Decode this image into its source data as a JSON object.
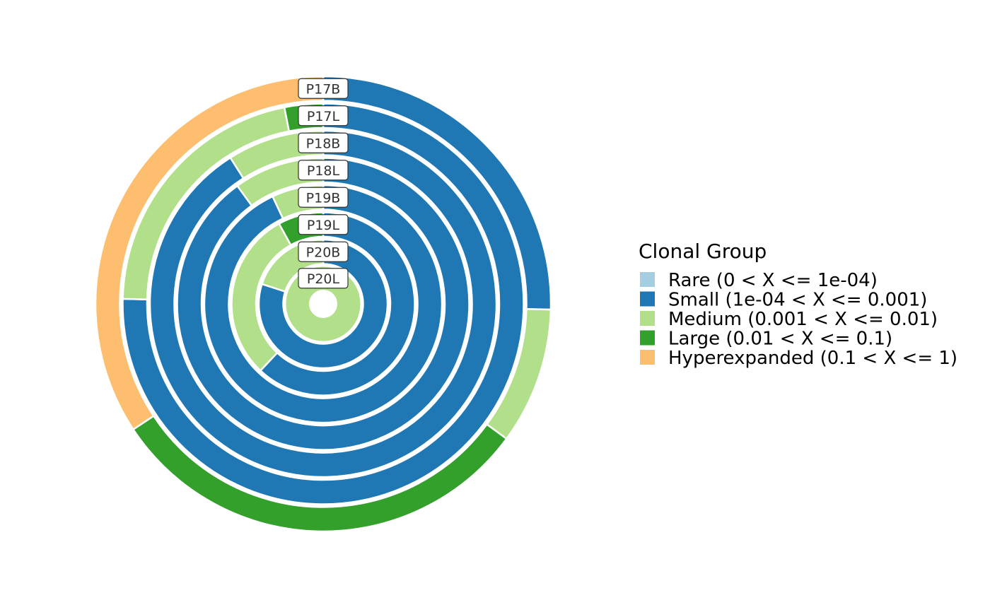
{
  "chart_data": {
    "type": "donut-rings",
    "legend": {
      "title": "Clonal Group",
      "position": "right",
      "entries": [
        {
          "label": "Rare (0 < X <= 1e-04)",
          "color": "#A6CEE3"
        },
        {
          "label": "Small (1e-04 < X <= 0.001)",
          "color": "#1F78B4"
        },
        {
          "label": "Medium (0.001 < X <= 0.01)",
          "color": "#B2DF8A"
        },
        {
          "label": "Large (0.01 < X <= 0.1)",
          "color": "#33A02C"
        },
        {
          "label": "Hyperexpanded (0.1 < X <= 1)",
          "color": "#FDBF6F"
        }
      ]
    },
    "rings": [
      {
        "sample": "P17B",
        "segments": [
          {
            "group": "Small (1e-04 < X <= 0.001)",
            "value": 0.254
          },
          {
            "group": "Medium (0.001 < X <= 0.01)",
            "value": 0.097
          },
          {
            "group": "Large (0.01 < X <= 0.1)",
            "value": 0.306
          },
          {
            "group": "Hyperexpanded (0.1 < X <= 1)",
            "value": 0.343
          }
        ]
      },
      {
        "sample": "P17L",
        "segments": [
          {
            "group": "Small (1e-04 < X <= 0.001)",
            "value": 0.754
          },
          {
            "group": "Medium (0.001 < X <= 0.01)",
            "value": 0.215
          },
          {
            "group": "Large (0.01 < X <= 0.1)",
            "value": 0.031
          }
        ]
      },
      {
        "sample": "P18B",
        "segments": [
          {
            "group": "Small (1e-04 < X <= 0.001)",
            "value": 0.91
          },
          {
            "group": "Medium (0.001 < X <= 0.01)",
            "value": 0.09
          }
        ]
      },
      {
        "sample": "P18L",
        "segments": [
          {
            "group": "Small (1e-04 < X <= 0.001)",
            "value": 0.9
          },
          {
            "group": "Medium (0.001 < X <= 0.01)",
            "value": 0.1
          }
        ]
      },
      {
        "sample": "P19B",
        "segments": [
          {
            "group": "Small (1e-04 < X <= 0.001)",
            "value": 0.93
          },
          {
            "group": "Medium (0.001 < X <= 0.01)",
            "value": 0.07
          }
        ]
      },
      {
        "sample": "P19L",
        "segments": [
          {
            "group": "Small (1e-04 < X <= 0.001)",
            "value": 0.62
          },
          {
            "group": "Medium (0.001 < X <= 0.01)",
            "value": 0.3
          },
          {
            "group": "Large (0.01 < X <= 0.1)",
            "value": 0.08
          }
        ]
      },
      {
        "sample": "P20B",
        "segments": [
          {
            "group": "Small (1e-04 < X <= 0.001)",
            "value": 0.8
          },
          {
            "group": "Medium (0.001 < X <= 0.01)",
            "value": 0.2
          }
        ]
      },
      {
        "sample": "P20L",
        "segments": [
          {
            "group": "Medium (0.001 < X <= 0.01)",
            "value": 1.0
          }
        ]
      }
    ]
  }
}
